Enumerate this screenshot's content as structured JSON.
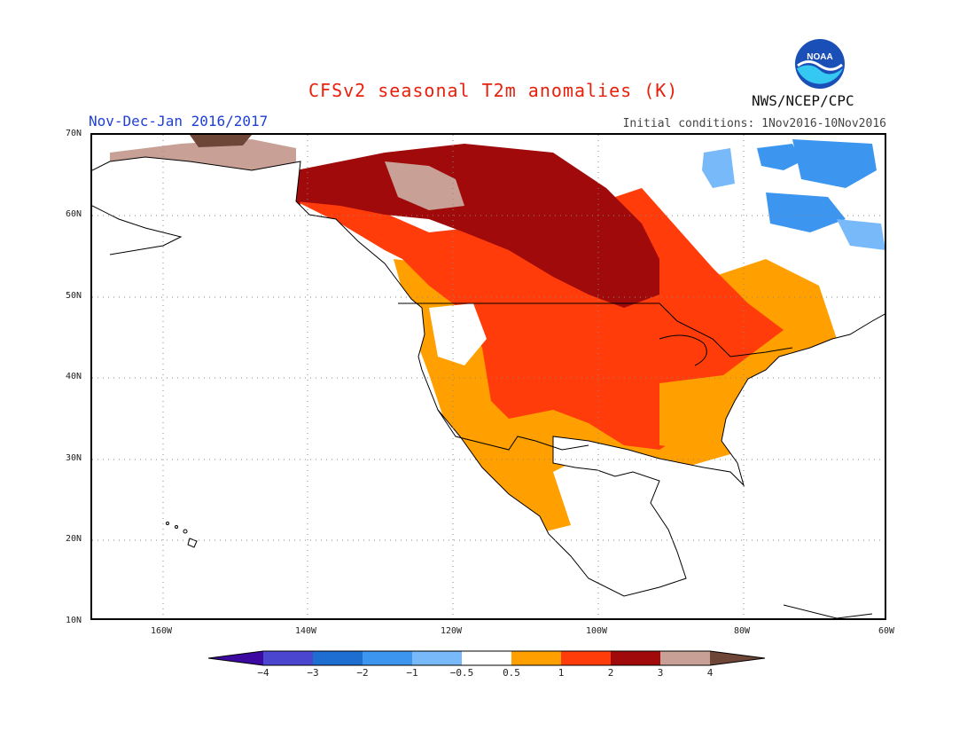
{
  "header": {
    "title": "CFSv2 seasonal T2m anomalies (K)",
    "season": "Nov-Dec-Jan 2016/2017",
    "initial_conditions": "Initial conditions: 1Nov2016-10Nov2016",
    "agency": "NWS/NCEP/CPC",
    "logo_text": "NOAA"
  },
  "map": {
    "lat_labels": [
      "70N",
      "60N",
      "50N",
      "40N",
      "30N",
      "20N",
      "10N"
    ],
    "lon_labels": [
      "160W",
      "140W",
      "120W",
      "100W",
      "80W",
      "60W"
    ],
    "lat_range": [
      10,
      70
    ],
    "lon_range": [
      -171,
      -60
    ],
    "colors": {
      "lt_m4": "#3c0aa0",
      "m4_m3": "#4b46d0",
      "m3_m2": "#1e6ed2",
      "m2_m1": "#3c96f0",
      "m1_m05": "#78b9fa",
      "neutral": "#ffffff",
      "p05_1": "#ffa000",
      "p1_2": "#ff3c0a",
      "p2_3": "#a00a0a",
      "p3_4": "#c8a096",
      "gt_4": "#6e4637"
    }
  },
  "colorbar": {
    "labels": [
      "−4",
      "−3",
      "−2",
      "−1",
      "−0.5",
      "0.5",
      "1",
      "2",
      "3",
      "4"
    ],
    "colors": [
      "#3c0aa0",
      "#4b46d0",
      "#1e6ed2",
      "#3c96f0",
      "#78b9fa",
      "#ffffff",
      "#ffa000",
      "#ff3c0a",
      "#a00a0a",
      "#c8a096",
      "#6e4637"
    ]
  }
}
